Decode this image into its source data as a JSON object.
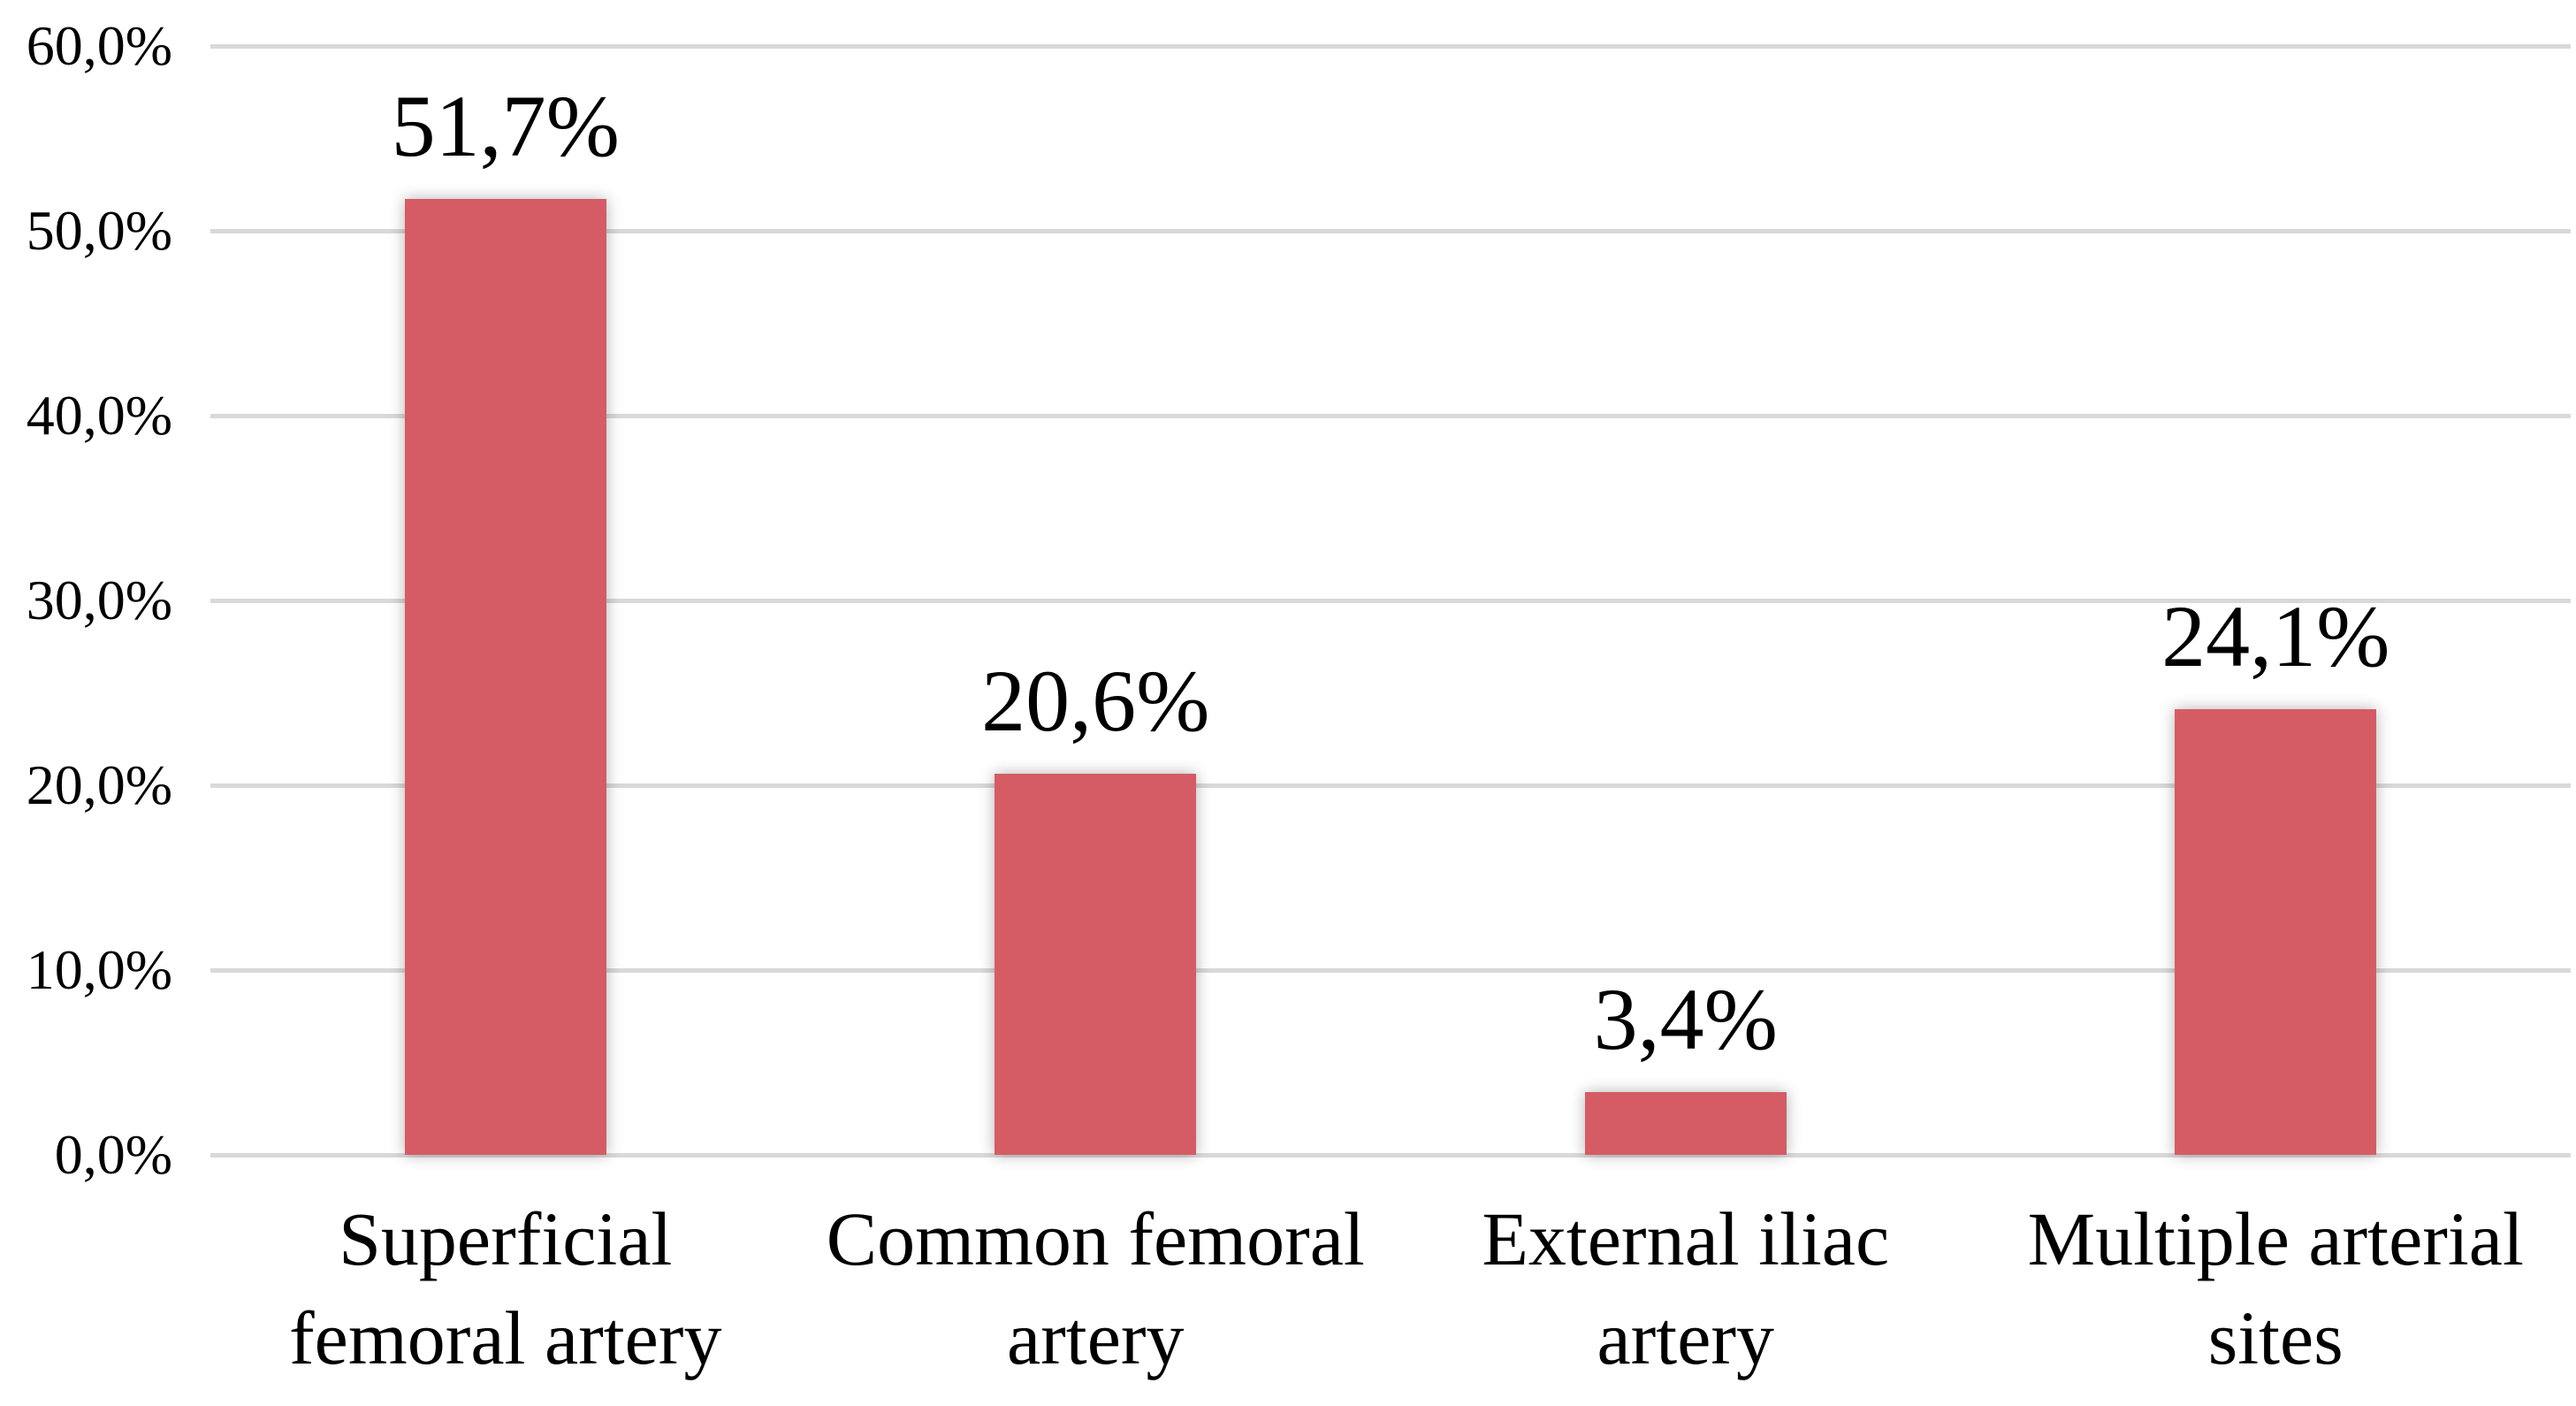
{
  "chart_data": {
    "type": "bar",
    "title": "",
    "xlabel": "",
    "ylabel": "",
    "categories": [
      "Superficial femoral artery",
      "Common femoral artery",
      "External iliac artery",
      "Multiple arterial sites"
    ],
    "category_lines": [
      [
        "Superficial",
        "femoral artery"
      ],
      [
        "Common femoral",
        "artery"
      ],
      [
        "External iliac",
        "artery"
      ],
      [
        "Multiple arterial",
        "sites"
      ]
    ],
    "values": [
      51.7,
      20.6,
      3.4,
      24.1
    ],
    "value_labels": [
      "51,7%",
      "20,6%",
      "3,4%",
      "24,1%"
    ],
    "ylim": [
      0,
      60
    ],
    "y_ticks": [
      {
        "value": 0,
        "label": "0,0%"
      },
      {
        "value": 10,
        "label": "10,0%"
      },
      {
        "value": 20,
        "label": "20,0%"
      },
      {
        "value": 30,
        "label": "30,0%"
      },
      {
        "value": 40,
        "label": "40,0%"
      },
      {
        "value": 50,
        "label": "50,0%"
      },
      {
        "value": 60,
        "label": "60,0%"
      }
    ],
    "grid": true,
    "legend_position": "none",
    "decimal_separator": ",",
    "colors": {
      "bar": "#d55c64",
      "gridline": "#d9d9d9",
      "axis_line": "#d9d9d9",
      "text": "#000000"
    }
  }
}
